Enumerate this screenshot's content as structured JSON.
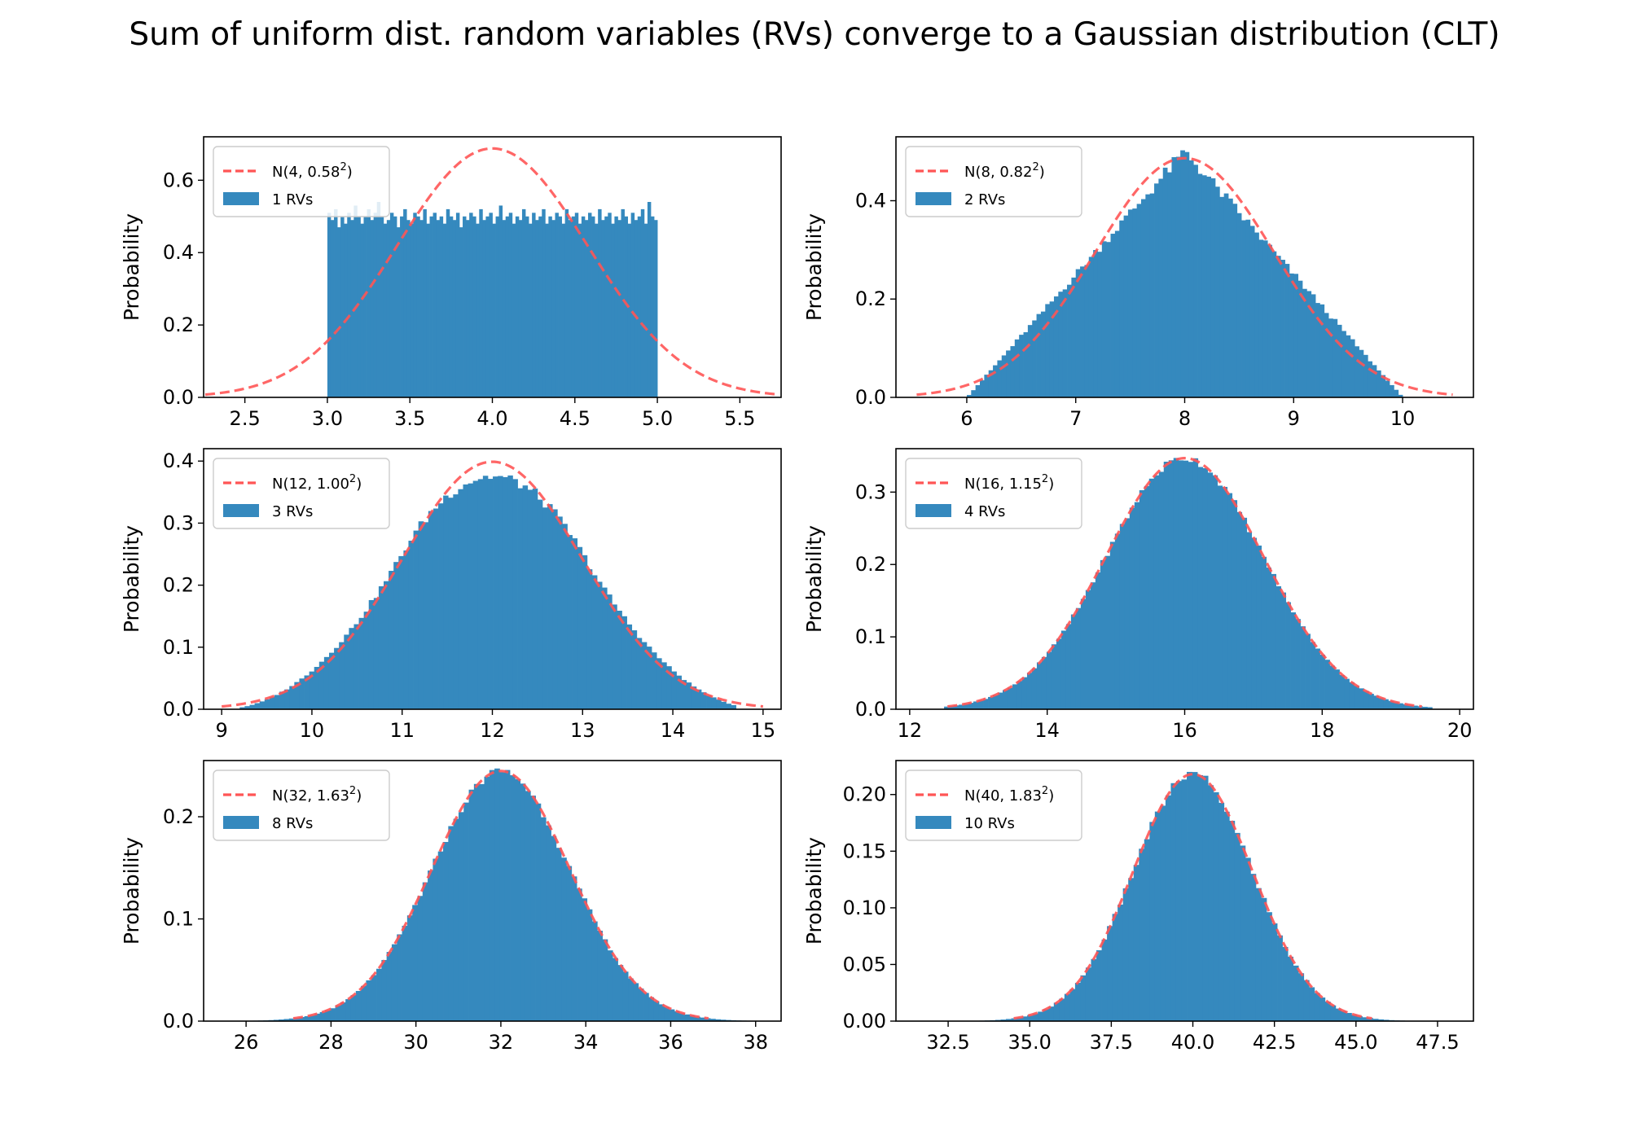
{
  "figure": {
    "title": "Sum of uniform dist. random variables (RVs) converge to a Gaussian distribution (CLT)"
  },
  "chart_data": [
    {
      "type": "bar",
      "n_rvs": 1,
      "ylabel": "Probability",
      "xlim": [
        2.25,
        5.75
      ],
      "ylim": [
        0,
        0.72
      ],
      "xticks": [
        2.5,
        3.0,
        3.5,
        4.0,
        4.5,
        5.0,
        5.5
      ],
      "xtick_labels": [
        "2.5",
        "3.0",
        "3.5",
        "4.0",
        "4.5",
        "5.0",
        "5.5"
      ],
      "yticks": [
        0,
        0.2,
        0.4,
        0.6
      ],
      "ytick_labels": [
        "0.0",
        "0.2",
        "0.4",
        "0.6"
      ],
      "legend": {
        "position": "upper left",
        "line_label": {
          "prefix": "N(4, 0.58",
          "sup": "2",
          "suffix": ")"
        },
        "bar_label": "1 RVs"
      },
      "normal_fit": {
        "mean": 4,
        "std": 0.58
      },
      "hist_range": [
        3.0,
        5.0
      ],
      "hist_bins": 100,
      "hist_values": [
        0.51,
        0.49,
        0.52,
        0.47,
        0.5,
        0.48,
        0.51,
        0.49,
        0.53,
        0.5,
        0.48,
        0.5,
        0.52,
        0.49,
        0.51,
        0.54,
        0.5,
        0.48,
        0.49,
        0.51,
        0.5,
        0.47,
        0.5,
        0.52,
        0.49,
        0.48,
        0.51,
        0.5,
        0.49,
        0.52,
        0.48,
        0.5,
        0.51,
        0.49,
        0.5,
        0.48,
        0.52,
        0.5,
        0.49,
        0.51,
        0.47,
        0.5,
        0.49,
        0.51,
        0.5,
        0.48,
        0.52,
        0.49,
        0.5,
        0.51,
        0.48,
        0.5,
        0.53,
        0.49,
        0.5,
        0.51,
        0.48,
        0.5,
        0.49,
        0.52,
        0.5,
        0.48,
        0.51,
        0.49,
        0.5,
        0.52,
        0.48,
        0.5,
        0.49,
        0.51,
        0.5,
        0.48,
        0.52,
        0.49,
        0.5,
        0.51,
        0.48,
        0.5,
        0.49,
        0.51,
        0.5,
        0.48,
        0.52,
        0.49,
        0.5,
        0.51,
        0.48,
        0.5,
        0.49,
        0.52,
        0.5,
        0.48,
        0.51,
        0.49,
        0.5,
        0.52,
        0.48,
        0.54,
        0.5,
        0.49
      ],
      "colors": {
        "bars": "#3589be",
        "curve": "#ff5555"
      }
    },
    {
      "type": "bar",
      "n_rvs": 2,
      "ylabel": "Probability",
      "xlim": [
        5.35,
        10.65
      ],
      "ylim": [
        0,
        0.53
      ],
      "xticks": [
        6,
        7,
        8,
        9,
        10
      ],
      "xtick_labels": [
        "6",
        "7",
        "8",
        "9",
        "10"
      ],
      "yticks": [
        0,
        0.2,
        0.4
      ],
      "ytick_labels": [
        "0.0",
        "0.2",
        "0.4"
      ],
      "legend": {
        "position": "upper left",
        "line_label": {
          "prefix": "N(8, 0.82",
          "sup": "2",
          "suffix": ")"
        },
        "bar_label": "2 RVs"
      },
      "normal_fit": {
        "mean": 8,
        "std": 0.82
      },
      "hist_range": [
        6.0,
        10.0
      ],
      "hist_bins": 100,
      "hist_shape": "triangular",
      "hist_peak": 0.5,
      "colors": {
        "bars": "#3589be",
        "curve": "#ff5555"
      }
    },
    {
      "type": "bar",
      "n_rvs": 3,
      "ylabel": "Probability",
      "xlim": [
        8.8,
        15.2
      ],
      "ylim": [
        0,
        0.42
      ],
      "xticks": [
        9,
        10,
        11,
        12,
        13,
        14,
        15
      ],
      "xtick_labels": [
        "9",
        "10",
        "11",
        "12",
        "13",
        "14",
        "15"
      ],
      "yticks": [
        0,
        0.1,
        0.2,
        0.3,
        0.4
      ],
      "ytick_labels": [
        "0.0",
        "0.1",
        "0.2",
        "0.3",
        "0.4"
      ],
      "legend": {
        "position": "upper left",
        "line_label": {
          "prefix": "N(12, 1.00",
          "sup": "2",
          "suffix": ")"
        },
        "bar_label": "3 RVs"
      },
      "normal_fit": {
        "mean": 12,
        "std": 1.0
      },
      "hist_range": [
        9.2,
        14.7
      ],
      "hist_bins": 100,
      "hist_shape": "irwin-hall",
      "colors": {
        "bars": "#3589be",
        "curve": "#ff5555"
      }
    },
    {
      "type": "bar",
      "n_rvs": 4,
      "ylabel": "Probability",
      "xlim": [
        11.8,
        20.2
      ],
      "ylim": [
        0,
        0.36
      ],
      "xticks": [
        12,
        14,
        16,
        18,
        20
      ],
      "xtick_labels": [
        "12",
        "14",
        "16",
        "18",
        "20"
      ],
      "yticks": [
        0,
        0.1,
        0.2,
        0.3
      ],
      "ytick_labels": [
        "0.0",
        "0.1",
        "0.2",
        "0.3"
      ],
      "legend": {
        "position": "upper left",
        "line_label": {
          "prefix": "N(16, 1.15",
          "sup": "2",
          "suffix": ")"
        },
        "bar_label": "4 RVs"
      },
      "normal_fit": {
        "mean": 16,
        "std": 1.15
      },
      "hist_range": [
        12.5,
        19.6
      ],
      "hist_bins": 100,
      "hist_shape": "gaussian",
      "colors": {
        "bars": "#3589be",
        "curve": "#ff5555"
      }
    },
    {
      "type": "bar",
      "n_rvs": 8,
      "ylabel": "Probability",
      "xlim": [
        25.0,
        38.6
      ],
      "ylim": [
        0,
        0.255
      ],
      "xticks": [
        26,
        28,
        30,
        32,
        34,
        36,
        38
      ],
      "xtick_labels": [
        "26",
        "28",
        "30",
        "32",
        "34",
        "36",
        "38"
      ],
      "yticks": [
        0,
        0.1,
        0.2
      ],
      "ytick_labels": [
        "0.0",
        "0.1",
        "0.2"
      ],
      "legend": {
        "position": "upper left",
        "line_label": {
          "prefix": "N(32, 1.63",
          "sup": "2",
          "suffix": ")"
        },
        "bar_label": "8 RVs"
      },
      "normal_fit": {
        "mean": 32,
        "std": 1.63
      },
      "hist_range": [
        25.8,
        37.9
      ],
      "hist_bins": 100,
      "hist_shape": "gaussian",
      "colors": {
        "bars": "#3589be",
        "curve": "#ff5555"
      }
    },
    {
      "type": "bar",
      "n_rvs": 10,
      "ylabel": "Probability",
      "xlim": [
        30.9,
        48.6
      ],
      "ylim": [
        0,
        0.23
      ],
      "xticks": [
        32.5,
        35.0,
        37.5,
        40.0,
        42.5,
        45.0,
        47.5
      ],
      "xtick_labels": [
        "32.5",
        "35.0",
        "37.5",
        "40.0",
        "42.5",
        "45.0",
        "47.5"
      ],
      "yticks": [
        0,
        0.05,
        0.1,
        0.15,
        0.2
      ],
      "ytick_labels": [
        "0.00",
        "0.05",
        "0.10",
        "0.15",
        "0.20"
      ],
      "legend": {
        "position": "upper left",
        "line_label": {
          "prefix": "N(40, 1.83",
          "sup": "2",
          "suffix": ")"
        },
        "bar_label": "10 RVs"
      },
      "normal_fit": {
        "mean": 40,
        "std": 1.83
      },
      "hist_range": [
        31.5,
        47.8
      ],
      "hist_bins": 100,
      "hist_shape": "gaussian",
      "colors": {
        "bars": "#3589be",
        "curve": "#ff5555"
      }
    }
  ]
}
